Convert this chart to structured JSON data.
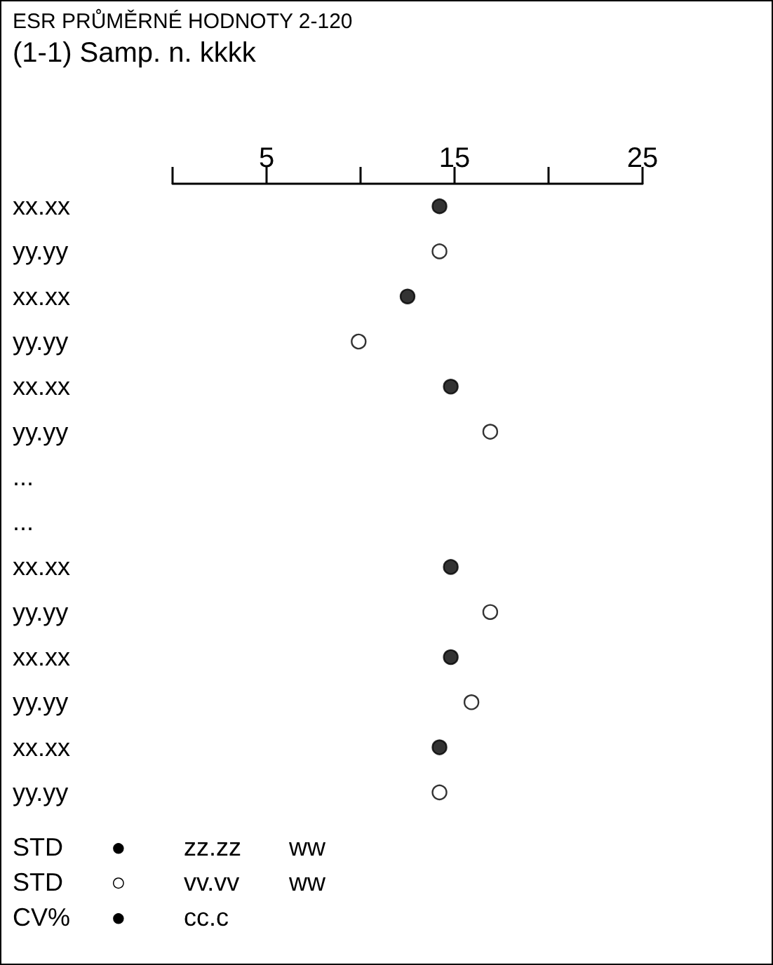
{
  "chart_data": {
    "type": "scatter",
    "orientation": "horizontal",
    "title": "ESR PRŮMĚRNÉ HODNOTY 2-120",
    "subtitle": "(1-1) Samp. n. kkkk",
    "categories": [
      "xx.xx",
      "yy.yy",
      "xx.xx",
      "yy.yy",
      "xx.xx",
      "yy.yy",
      "...",
      "...",
      "xx.xx",
      "yy.yy",
      "xx.xx",
      "yy.yy",
      "xx.xx",
      "yy.yy"
    ],
    "series": [
      {
        "color": "#000000",
        "values": [
          14.2,
          null,
          12.5,
          null,
          14.8,
          null,
          null,
          null,
          14.8,
          null,
          14.8,
          null,
          14.2,
          null
        ]
      },
      {
        "color": "#ffffff",
        "values": [
          null,
          14.2,
          null,
          9.9,
          null,
          16.9,
          null,
          null,
          null,
          16.9,
          null,
          15.9,
          null,
          14.2
        ]
      }
    ],
    "xlim": [
      0,
      25
    ],
    "xticks": [
      {
        "value": 0,
        "label": null
      },
      5,
      {
        "value": 10,
        "label": null
      },
      15,
      {
        "value": 20,
        "label": null
      },
      25
    ],
    "marker": "circle",
    "grid": false,
    "annotations": [
      "STD ● zz.zz ww",
      "STD ○ vv.vv ww",
      "CV% ● cc.c"
    ]
  }
}
